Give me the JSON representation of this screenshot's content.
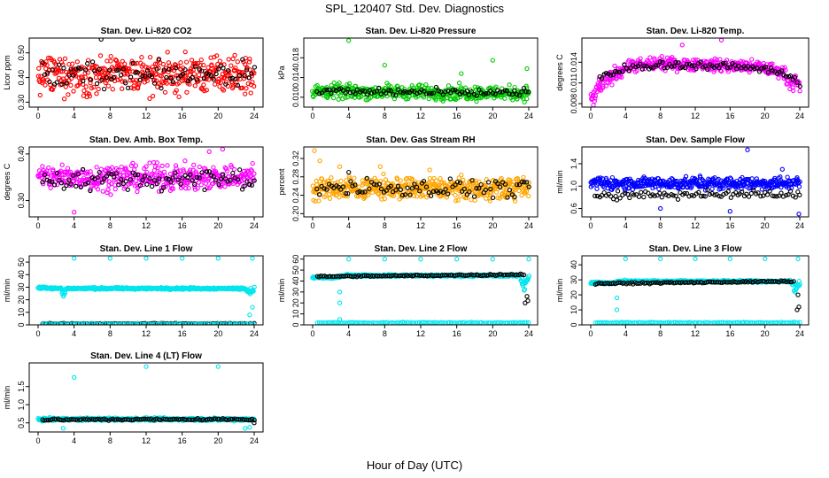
{
  "page": {
    "title": "SPL_120407  Std. Dev. Diagnostics",
    "xlabel": "Hour of Day (UTC)"
  },
  "colors": {
    "red": "#ff0000",
    "green": "#00cc00",
    "magenta": "#ff00ff",
    "orange": "#ffa500",
    "blue": "#0000ff",
    "cyan": "#00e5ee",
    "black": "#000000"
  },
  "chart_data": [
    {
      "type": "scatter",
      "title": "Stan. Dev. Li-820 CO2",
      "ylabel": "Licor ppm",
      "xticks": [
        "0",
        "4",
        "8",
        "12",
        "16",
        "20",
        "24"
      ],
      "xlim": [
        0,
        24
      ],
      "ylim": [
        0.28,
        0.56
      ],
      "yticks": [
        {
          "v": 0.3,
          "t": "0.30"
        },
        {
          "v": 0.4,
          "t": "0.40"
        },
        {
          "v": 0.5,
          "t": "0.50"
        }
      ],
      "series": [
        {
          "color": "red",
          "pattern": "band",
          "x": [
            0,
            24
          ],
          "mid": [
            0.41,
            0.41
          ],
          "spread": [
            0.11,
            0.11
          ],
          "n": 420,
          "outliers": []
        },
        {
          "color": "black",
          "pattern": "band",
          "x": [
            0.5,
            24
          ],
          "mid": [
            0.41,
            0.42
          ],
          "spread": [
            0.08,
            0.08
          ],
          "n": 90,
          "outliers": [
            [
              7,
              0.555
            ],
            [
              10.5,
              0.555
            ]
          ]
        }
      ]
    },
    {
      "type": "scatter",
      "title": "Stan. Dev. Li-820 Pressure",
      "ylabel": "kPa",
      "xticks": [
        "0",
        "4",
        "8",
        "12",
        "16",
        "20",
        "24"
      ],
      "xlim": [
        0,
        24
      ],
      "ylim": [
        0.008,
        0.022
      ],
      "yticks": [
        {
          "v": 0.01,
          "t": "0.010"
        },
        {
          "v": 0.014,
          "t": "0.014"
        },
        {
          "v": 0.018,
          "t": "0.018"
        }
      ],
      "series": [
        {
          "color": "green",
          "pattern": "band",
          "x": [
            0,
            24
          ],
          "mid": [
            0.0112,
            0.0108
          ],
          "spread": [
            0.0022,
            0.0022
          ],
          "n": 420,
          "outliers": [
            [
              4,
              0.0215
            ],
            [
              8,
              0.0165
            ],
            [
              16.5,
              0.0148
            ],
            [
              20,
              0.0175
            ],
            [
              23.8,
              0.0158
            ]
          ]
        },
        {
          "color": "black",
          "pattern": "band",
          "x": [
            0.5,
            24
          ],
          "mid": [
            0.0112,
            0.0108
          ],
          "spread": [
            0.0012,
            0.0012
          ],
          "n": 90,
          "outliers": []
        }
      ]
    },
    {
      "type": "scatter",
      "title": "Stan. Dev. Li-820 Temp.",
      "ylabel": "degrees C",
      "xticks": [
        "0",
        "4",
        "8",
        "12",
        "16",
        "20",
        "24"
      ],
      "xlim": [
        0,
        24
      ],
      "ylim": [
        0.0075,
        0.0175
      ],
      "yticks": [
        {
          "v": 0.008,
          "t": "0.008"
        },
        {
          "v": 0.011,
          "t": "0.011"
        },
        {
          "v": 0.014,
          "t": "0.014"
        }
      ],
      "series": [
        {
          "color": "magenta",
          "pattern": "profile",
          "x": [
            0,
            1,
            3,
            4,
            8,
            12,
            16,
            20,
            22,
            23,
            24
          ],
          "mid": [
            0.0085,
            0.0105,
            0.0125,
            0.0133,
            0.0138,
            0.0137,
            0.0135,
            0.0132,
            0.0125,
            0.0112,
            0.0105
          ],
          "spread": [
            0.0018,
            0.0018,
            0.0016,
            0.0014,
            0.0013,
            0.0013,
            0.0013,
            0.0014,
            0.0014,
            0.0016,
            0.0016
          ],
          "n": 420,
          "outliers": [
            [
              10.5,
              0.0165
            ],
            [
              15,
              0.0172
            ],
            [
              0.3,
              0.0078
            ]
          ]
        },
        {
          "color": "black",
          "pattern": "profile",
          "x": [
            1,
            4,
            8,
            12,
            16,
            20,
            22,
            24
          ],
          "mid": [
            0.0118,
            0.0131,
            0.0136,
            0.0136,
            0.0134,
            0.0131,
            0.0125,
            0.011
          ],
          "spread": [
            0.0008,
            0.0008,
            0.0008,
            0.0008,
            0.0008,
            0.0008,
            0.0008,
            0.0008
          ],
          "n": 90,
          "outliers": []
        }
      ]
    },
    {
      "type": "scatter",
      "title": "Stan. Dev. Amb. Box Temp.",
      "ylabel": "degrees C",
      "xticks": [
        "0",
        "4",
        "8",
        "12",
        "16",
        "20",
        "24"
      ],
      "xlim": [
        0,
        24
      ],
      "ylim": [
        0.265,
        0.415
      ],
      "yticks": [
        {
          "v": 0.3,
          "t": "0.30"
        },
        {
          "v": 0.4,
          "t": "0.40"
        }
      ],
      "series": [
        {
          "color": "magenta",
          "pattern": "band",
          "x": [
            0,
            24
          ],
          "mid": [
            0.35,
            0.35
          ],
          "spread": [
            0.04,
            0.04
          ],
          "n": 420,
          "outliers": [
            [
              4,
              0.275
            ],
            [
              20.5,
              0.41
            ],
            [
              19,
              0.405
            ]
          ]
        },
        {
          "color": "black",
          "pattern": "band",
          "x": [
            0.5,
            24
          ],
          "mid": [
            0.345,
            0.345
          ],
          "spread": [
            0.035,
            0.035
          ],
          "n": 90,
          "outliers": []
        }
      ]
    },
    {
      "type": "scatter",
      "title": "Stan. Dev. Gas Stream RH",
      "ylabel": "percent",
      "xticks": [
        "0",
        "4",
        "8",
        "12",
        "16",
        "20",
        "24"
      ],
      "xlim": [
        0,
        24
      ],
      "ylim": [
        0.193,
        0.345
      ],
      "yticks": [
        {
          "v": 0.2,
          "t": "0.20"
        },
        {
          "v": 0.24,
          "t": "0.24"
        },
        {
          "v": 0.28,
          "t": "0.28"
        },
        {
          "v": 0.32,
          "t": "0.32"
        }
      ],
      "series": [
        {
          "color": "orange",
          "pattern": "band",
          "x": [
            0,
            24
          ],
          "mid": [
            0.255,
            0.255
          ],
          "spread": [
            0.035,
            0.035
          ],
          "n": 480,
          "outliers": [
            [
              0.2,
              0.337
            ],
            [
              0.8,
              0.315
            ],
            [
              3,
              0.302
            ],
            [
              7.5,
              0.302
            ],
            [
              13,
              0.295
            ]
          ]
        },
        {
          "color": "black",
          "pattern": "band",
          "x": [
            0.5,
            24
          ],
          "mid": [
            0.258,
            0.255
          ],
          "spread": [
            0.028,
            0.028
          ],
          "n": 90,
          "outliers": [
            [
              4,
              0.29
            ]
          ]
        }
      ]
    },
    {
      "type": "scatter",
      "title": "Stan. Dev. Sample Flow",
      "ylabel": "ml/min",
      "xticks": [
        "0",
        "4",
        "8",
        "12",
        "16",
        "20",
        "24"
      ],
      "xlim": [
        0,
        24
      ],
      "ylim": [
        0.45,
        1.7
      ],
      "yticks": [
        {
          "v": 0.6,
          "t": "0.6"
        },
        {
          "v": 1.0,
          "t": "1.0"
        },
        {
          "v": 1.4,
          "t": "1.4"
        }
      ],
      "series": [
        {
          "color": "blue",
          "pattern": "band",
          "x": [
            0,
            24
          ],
          "mid": [
            1.05,
            1.05
          ],
          "spread": [
            0.16,
            0.16
          ],
          "n": 420,
          "outliers": [
            [
              18,
              1.65
            ],
            [
              8,
              0.6
            ],
            [
              16,
              0.55
            ],
            [
              23.9,
              0.5
            ],
            [
              22,
              1.3
            ]
          ]
        },
        {
          "color": "black",
          "pattern": "band",
          "x": [
            0.5,
            24
          ],
          "mid": [
            0.85,
            0.85
          ],
          "spread": [
            0.1,
            0.1
          ],
          "n": 90,
          "outliers": [
            [
              3,
              0.75
            ]
          ]
        }
      ]
    },
    {
      "type": "scatter",
      "title": "Stan. Dev. Line 1 Flow",
      "ylabel": "ml/min",
      "xticks": [
        "0",
        "4",
        "8",
        "12",
        "16",
        "20",
        "24"
      ],
      "xlim": [
        0,
        24
      ],
      "ylim": [
        0,
        55
      ],
      "yticks": [
        {
          "v": 0,
          "t": "0"
        },
        {
          "v": 10,
          "t": "10"
        },
        {
          "v": 20,
          "t": "20"
        },
        {
          "v": 30,
          "t": "30"
        },
        {
          "v": 40,
          "t": "40"
        },
        {
          "v": 50,
          "t": "50"
        }
      ],
      "series": [
        {
          "color": "cyan",
          "pattern": "profile",
          "x": [
            0,
            2.5,
            2.8,
            3.2,
            4,
            23,
            23.5,
            24
          ],
          "mid": [
            30,
            29,
            24,
            29,
            29,
            29,
            26,
            29
          ],
          "spread": [
            1.5,
            1.5,
            6,
            1.5,
            1.2,
            1.2,
            4,
            2
          ],
          "n": 420,
          "outliers": [
            [
              4,
              53
            ],
            [
              8,
              53
            ],
            [
              12,
              53
            ],
            [
              16,
              53
            ],
            [
              20,
              53
            ],
            [
              23.8,
              53
            ],
            [
              23.5,
              8
            ],
            [
              23.8,
              14
            ]
          ]
        },
        {
          "color": "black",
          "pattern": "band",
          "x": [
            0.5,
            24
          ],
          "mid": [
            1,
            1
          ],
          "spread": [
            0.4,
            0.4
          ],
          "n": 110,
          "outliers": []
        },
        {
          "color": "cyan",
          "pattern": "band",
          "x": [
            0.5,
            24
          ],
          "mid": [
            0.8,
            0.8
          ],
          "spread": [
            0.4,
            0.4
          ],
          "n": 80,
          "outliers": []
        }
      ]
    },
    {
      "type": "scatter",
      "title": "Stan. Dev. Line 2 Flow",
      "ylabel": "ml/min",
      "xticks": [
        "0",
        "4",
        "8",
        "12",
        "16",
        "20",
        "24"
      ],
      "xlim": [
        0,
        24
      ],
      "ylim": [
        0,
        63
      ],
      "yticks": [
        {
          "v": 0,
          "t": "0"
        },
        {
          "v": 10,
          "t": "10"
        },
        {
          "v": 20,
          "t": "20"
        },
        {
          "v": 30,
          "t": "30"
        },
        {
          "v": 40,
          "t": "40"
        },
        {
          "v": 50,
          "t": "50"
        },
        {
          "v": 60,
          "t": "60"
        }
      ],
      "series": [
        {
          "color": "cyan",
          "pattern": "profile",
          "x": [
            0,
            2.5,
            3.5,
            4,
            23,
            23.5,
            24
          ],
          "mid": [
            43,
            43,
            45,
            45,
            45,
            35,
            45
          ],
          "spread": [
            1.5,
            1.5,
            2,
            1.5,
            1.5,
            10,
            2
          ],
          "n": 420,
          "outliers": [
            [
              4,
              60
            ],
            [
              8,
              60
            ],
            [
              12,
              60
            ],
            [
              16,
              60
            ],
            [
              20,
              60
            ],
            [
              24,
              60
            ],
            [
              3,
              30
            ],
            [
              3,
              20
            ],
            [
              3,
              5
            ]
          ]
        },
        {
          "color": "black",
          "pattern": "band",
          "x": [
            0.5,
            23.5
          ],
          "mid": [
            44,
            46
          ],
          "spread": [
            1,
            1
          ],
          "n": 110,
          "outliers": [
            [
              23.8,
              26
            ],
            [
              23.9,
              22
            ],
            [
              23.6,
              20
            ]
          ]
        },
        {
          "color": "cyan",
          "pattern": "band",
          "x": [
            0.5,
            24
          ],
          "mid": [
            2,
            2
          ],
          "spread": [
            0.6,
            0.6
          ],
          "n": 100,
          "outliers": []
        }
      ]
    },
    {
      "type": "scatter",
      "title": "Stan. Dev. Line 3 Flow",
      "ylabel": "ml/min",
      "xticks": [
        "0",
        "4",
        "8",
        "12",
        "16",
        "20",
        "24"
      ],
      "xlim": [
        0,
        24
      ],
      "ylim": [
        0,
        46
      ],
      "yticks": [
        {
          "v": 0,
          "t": "0"
        },
        {
          "v": 10,
          "t": "10"
        },
        {
          "v": 20,
          "t": "20"
        },
        {
          "v": 30,
          "t": "30"
        },
        {
          "v": 40,
          "t": "40"
        }
      ],
      "series": [
        {
          "color": "cyan",
          "pattern": "profile",
          "x": [
            0,
            2.5,
            3.5,
            4,
            23,
            23.5,
            24
          ],
          "mid": [
            28,
            28,
            29,
            29,
            29,
            24,
            28
          ],
          "spread": [
            1.2,
            1.2,
            1.5,
            1,
            1,
            6,
            2
          ],
          "n": 420,
          "outliers": [
            [
              4,
              44
            ],
            [
              8,
              44
            ],
            [
              12,
              44
            ],
            [
              16,
              44
            ],
            [
              20,
              44
            ],
            [
              23.8,
              44
            ],
            [
              3,
              18
            ],
            [
              3,
              10
            ]
          ]
        },
        {
          "color": "black",
          "pattern": "band",
          "x": [
            0.5,
            23.3
          ],
          "mid": [
            27.5,
            29
          ],
          "spread": [
            0.8,
            0.8
          ],
          "n": 110,
          "outliers": [
            [
              23.8,
              20
            ],
            [
              23.9,
              12
            ],
            [
              23.7,
              10
            ]
          ]
        },
        {
          "color": "cyan",
          "pattern": "band",
          "x": [
            0.5,
            24
          ],
          "mid": [
            1.5,
            1.5
          ],
          "spread": [
            0.5,
            0.5
          ],
          "n": 100,
          "outliers": []
        }
      ]
    },
    {
      "type": "scatter",
      "title": "Stan. Dev. Line 4 (LT) Flow",
      "ylabel": "ml/min",
      "xticks": [
        "0",
        "4",
        "8",
        "12",
        "16",
        "20",
        "24"
      ],
      "xlim": [
        0,
        24
      ],
      "ylim": [
        0.25,
        2.15
      ],
      "yticks": [
        {
          "v": 0.5,
          "t": "0.5"
        },
        {
          "v": 1.0,
          "t": "1.0"
        },
        {
          "v": 1.5,
          "t": "1.5"
        }
      ],
      "series": [
        {
          "color": "cyan",
          "pattern": "band",
          "x": [
            0,
            24
          ],
          "mid": [
            0.6,
            0.6
          ],
          "spread": [
            0.06,
            0.06
          ],
          "n": 420,
          "outliers": [
            [
              4,
              1.75
            ],
            [
              12,
              2.05
            ],
            [
              20,
              2.05
            ],
            [
              2.8,
              0.35
            ],
            [
              23,
              0.35
            ],
            [
              23.5,
              0.38
            ]
          ]
        },
        {
          "color": "black",
          "pattern": "band",
          "x": [
            0.5,
            24
          ],
          "mid": [
            0.59,
            0.6
          ],
          "spread": [
            0.04,
            0.04
          ],
          "n": 110,
          "outliers": [
            [
              24,
              0.5
            ]
          ]
        }
      ]
    }
  ]
}
